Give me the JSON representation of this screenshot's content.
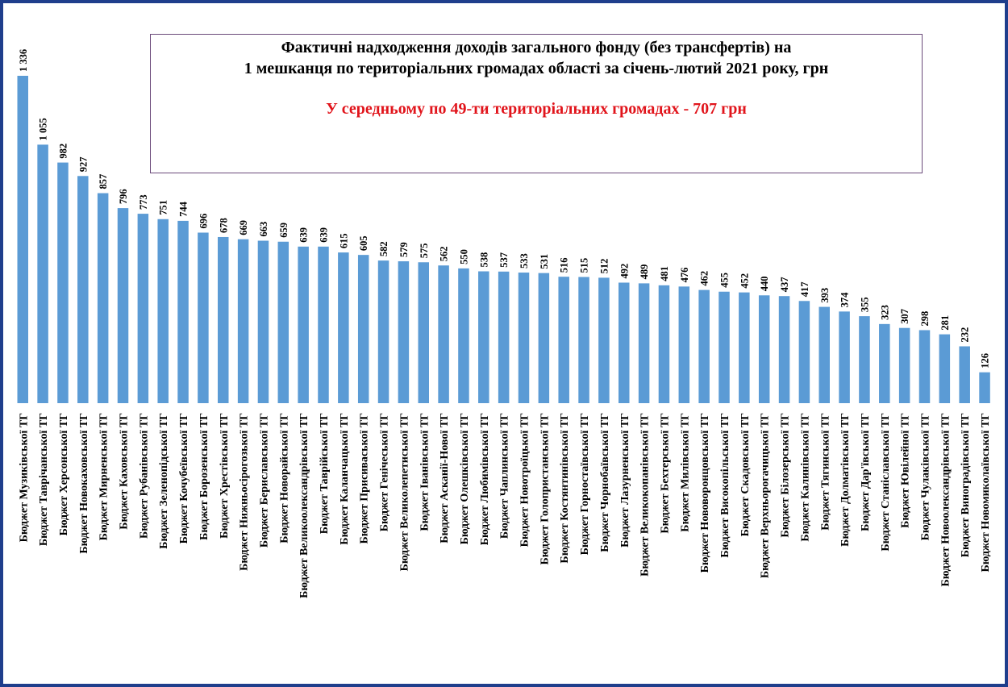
{
  "colors": {
    "bar": "#5b9bd5",
    "title": "#000000",
    "subtitle": "#e1141b",
    "frame": "#1f3e8c"
  },
  "chart_data": {
    "type": "bar",
    "title_line1": "Фактичні надходження доходів загального фонду (без трансфертів) на",
    "title_line2": "1 мешканця по територіальних громадах області за січень-лютий 2021 року, грн",
    "subtitle": "У середньому по 49-ти територіальних громадах - 707 грн",
    "xlabel": "",
    "ylabel": "",
    "grid": false,
    "legend": "none",
    "categories": [
      "Бюджет Музиківської ТГ",
      "Бюджет Таврічанської ТГ",
      "Бюджет Херсонської ТГ",
      "Бюджет Новокаховської ТГ",
      "Бюджет Мирненської ТГ",
      "Бюджет Каховської ТГ",
      "Бюджет Рубанівської ТГ",
      "Бюджет Зеленопідської ТГ",
      "Бюджет Кочубеївської ТГ",
      "Бюджет Борозенської ТГ",
      "Бюджет Хрестівської ТГ",
      "Бюджет Нижньосірогозької ТГ",
      "Бюджет Бериславської ТГ",
      "Бюджет Новорайської ТГ",
      "Бюджет Великоолександрівської ТГ",
      "Бюджет Таврійської ТГ",
      "Бюджет Каланчацької ТГ",
      "Бюджет Присиваської ТГ",
      "Бюджет Генічеської ТГ",
      "Бюджет Великолепетиської ТГ",
      "Бюджет Іванівської ТГ",
      "Бюджет Асканії-Нової ТГ",
      "Бюджет Олешківської ТГ",
      "Бюджет Любимівської ТГ",
      "Бюджет Чаплинської ТГ",
      "Бюджет Новотроїцької ТГ",
      "Бюджет Голопристанської ТГ",
      "Бюджет Костянтинівської ТГ",
      "Бюджет Горностаївської ТГ",
      "Бюджет Чорнобаївської ТГ",
      "Бюджет Лазурненської ТГ",
      "Бюджет Великокопанівської ТГ",
      "Бюджет Бехтерської ТГ",
      "Бюджет Милівської ТГ",
      "Бюджет Нововоронцовської ТГ",
      "Бюджет Високопільської ТГ",
      "Бюджет Скадовської ТГ",
      "Бюджет Верхньорогачицької ТГ",
      "Бюджет Білозерської ТГ",
      "Бюджет Калинівської ТГ",
      "Бюджет Тягинської ТГ",
      "Бюджет Долматівської ТГ",
      "Бюджет Дар'ївської ТГ",
      "Бюджет Станіславської ТГ",
      "Бюджет Ювілейної ТГ",
      "Бюджет Чулаківської ТГ",
      "Бюджет Новоолександрівської ТГ",
      "Бюджет Виноградівської ТГ",
      "Бюджет Новомиколаївської ТГ"
    ],
    "values": [
      1336,
      1055,
      982,
      927,
      857,
      796,
      773,
      751,
      744,
      696,
      678,
      669,
      663,
      659,
      639,
      639,
      615,
      605,
      582,
      579,
      575,
      562,
      550,
      538,
      537,
      533,
      531,
      516,
      515,
      512,
      492,
      489,
      481,
      476,
      462,
      455,
      452,
      440,
      437,
      417,
      393,
      374,
      355,
      323,
      307,
      298,
      281,
      232,
      126
    ],
    "value_labels": [
      "1 336",
      "1 055",
      "982",
      "927",
      "857",
      "796",
      "773",
      "751",
      "744",
      "696",
      "678",
      "669",
      "663",
      "659",
      "639",
      "639",
      "615",
      "605",
      "582",
      "579",
      "575",
      "562",
      "550",
      "538",
      "537",
      "533",
      "531",
      "516",
      "515",
      "512",
      "492",
      "489",
      "481",
      "476",
      "462",
      "455",
      "452",
      "440",
      "437",
      "417",
      "393",
      "374",
      "355",
      "323",
      "307",
      "298",
      "281",
      "232",
      "126"
    ],
    "ylim": [
      0,
      1336
    ]
  }
}
